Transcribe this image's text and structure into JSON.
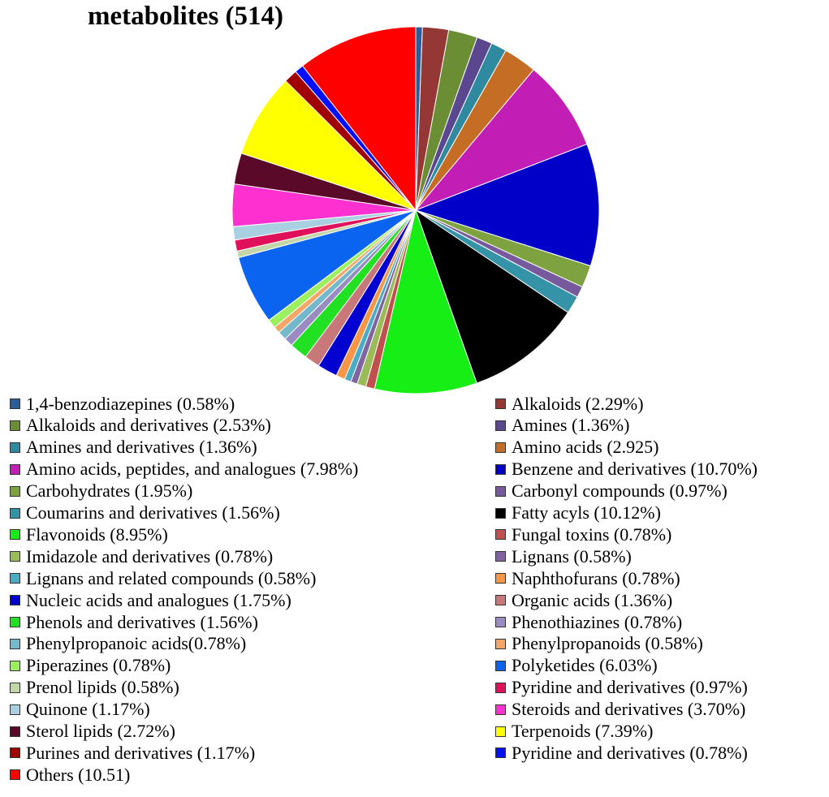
{
  "chart_data": {
    "type": "pie",
    "title": "metabolites (514)",
    "slices": [
      {
        "label": "1,4-benzodiazepines (0.58%)",
        "value": 0.58,
        "color": "#2e5c99"
      },
      {
        "label": "Alkaloids (2.29%)",
        "value": 2.29,
        "color": "#953735"
      },
      {
        "label": "Alkaloids and derivatives (2.53%)",
        "value": 2.53,
        "color": "#6b8e35"
      },
      {
        "label": "Amines (1.36%)",
        "value": 1.36,
        "color": "#5b4690"
      },
      {
        "label": "Amines and derivatives (1.36%)",
        "value": 1.36,
        "color": "#2f8aa0"
      },
      {
        "label": "Amino acids (2.925)",
        "value": 2.925,
        "color": "#c56d24"
      },
      {
        "label": "Amino acids, peptides, and analogues (7.98%)",
        "value": 7.98,
        "color": "#c21db5"
      },
      {
        "label": "Benzene and derivatives (10.70%)",
        "value": 10.7,
        "color": "#0000c8"
      },
      {
        "label": "Carbohydrates (1.95%)",
        "value": 1.95,
        "color": "#7ea23f"
      },
      {
        "label": "Carbonyl compounds (0.97%)",
        "value": 0.97,
        "color": "#775a9e"
      },
      {
        "label": "Coumarins and derivatives (1.56%)",
        "value": 1.56,
        "color": "#3593a8"
      },
      {
        "label": "Fatty acyls (10.12%)",
        "value": 10.12,
        "color": "#000000"
      },
      {
        "label": "Flavonoids (8.95%)",
        "value": 8.95,
        "color": "#16ee16"
      },
      {
        "label": "Fungal toxins (0.78%)",
        "value": 0.78,
        "color": "#c0504d"
      },
      {
        "label": "Imidazole and derivatives (0.78%)",
        "value": 0.78,
        "color": "#9bbb59"
      },
      {
        "label": "Lignans (0.58%)",
        "value": 0.58,
        "color": "#8064a2"
      },
      {
        "label": "Lignans and related compounds (0.58%)",
        "value": 0.58,
        "color": "#4bacc6"
      },
      {
        "label": "Naphthofurans (0.78%)",
        "value": 0.78,
        "color": "#f79646"
      },
      {
        "label": "Nucleic acids and analogues (1.75%)",
        "value": 1.75,
        "color": "#0000d0"
      },
      {
        "label": "Organic acids (1.36%)",
        "value": 1.36,
        "color": "#c87878"
      },
      {
        "label": "Phenols and derivatives (1.56%)",
        "value": 1.56,
        "color": "#22e022"
      },
      {
        "label": "Phenothiazines (0.78%)",
        "value": 0.78,
        "color": "#9a8cc0"
      },
      {
        "label": "Phenylpropanoic acids(0.78%)",
        "value": 0.78,
        "color": "#74b8cc"
      },
      {
        "label": "Phenylpropanoids (0.58%)",
        "value": 0.58,
        "color": "#f5a46a"
      },
      {
        "label": "Piperazines (0.78%)",
        "value": 0.78,
        "color": "#9cf060"
      },
      {
        "label": "Polyketides (6.03%)",
        "value": 6.03,
        "color": "#0a64f0"
      },
      {
        "label": "Prenol lipids (0.58%)",
        "value": 0.58,
        "color": "#c3d6a8"
      },
      {
        "label": "Pyridine and derivatives (0.97%)",
        "value": 0.97,
        "color": "#e0105a"
      },
      {
        "label": "Quinone (1.17%)",
        "value": 1.17,
        "color": "#a8d0e0"
      },
      {
        "label": "Steroids and derivatives (3.70%)",
        "value": 3.7,
        "color": "#ff30d0"
      },
      {
        "label": "Sterol lipids (2.72%)",
        "value": 2.72,
        "color": "#5a0a28"
      },
      {
        "label": "Terpenoids (7.39%)",
        "value": 7.39,
        "color": "#ffff00"
      },
      {
        "label": "Purines and derivatives (1.17%)",
        "value": 1.17,
        "color": "#a00000"
      },
      {
        "label": "Pyridine and derivatives (0.78%)",
        "value": 0.78,
        "color": "#0010ff"
      },
      {
        "label": "Others (10.51)",
        "value": 10.51,
        "color": "#ff0000"
      }
    ],
    "legend_placement": "bottom, two columns"
  }
}
